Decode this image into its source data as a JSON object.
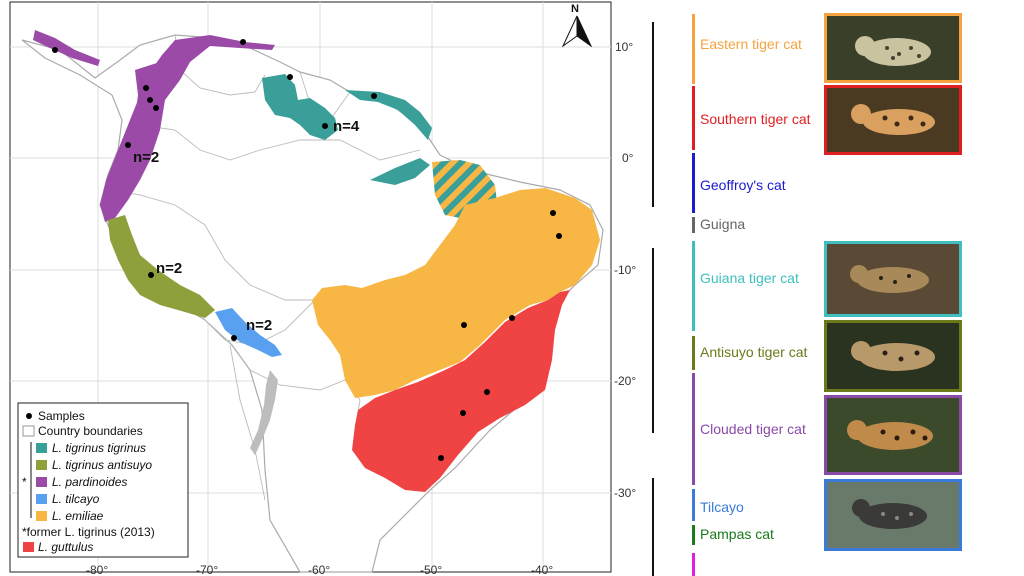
{
  "map": {
    "north_label": "N",
    "lat_ticks": [
      "10°",
      "0°",
      "-10°",
      "-20°",
      "-30°"
    ],
    "lon_ticks": [
      "-80°",
      "-70°",
      "-60°",
      "-50°",
      "-40°"
    ],
    "sample_counts": [
      "n=2",
      "n=2",
      "n=2",
      "n=4"
    ]
  },
  "legend": {
    "samples": "Samples",
    "country_boundaries": "Country boundaries",
    "species": [
      {
        "name": "L. tigrinus tigrinus",
        "color": "#3a9e99"
      },
      {
        "name": "L. tigrinus antisuyo",
        "color": "#8ea03c"
      },
      {
        "name": "L. pardinoides",
        "color": "#9b4aa8"
      },
      {
        "name": "L. tilcayo",
        "color": "#5aa0f0"
      },
      {
        "name": "L. emiliae",
        "color": "#f8b744"
      }
    ],
    "asterisk": "*",
    "footnote": "*former L. tigrinus (2013)",
    "guttulus": {
      "name": "L. guttulus",
      "color": "#f04444"
    }
  },
  "tree": {
    "labels": [
      {
        "name": "Eastern tiger cat",
        "color": "#f4a340"
      },
      {
        "name": "Southern tiger cat",
        "color": "#e02020"
      },
      {
        "name": "Geoffroy's cat",
        "color": "#1a1ad0"
      },
      {
        "name": "Guigna",
        "color": "#666666"
      },
      {
        "name": "Guiana tiger cat",
        "color": "#3fbfbf"
      },
      {
        "name": "Antisuyo tiger cat",
        "color": "#6a7a1a"
      },
      {
        "name": "Clouded tiger cat",
        "color": "#8a4aa8"
      },
      {
        "name": "Tilcayo",
        "color": "#3a7ad8"
      },
      {
        "name": "Pampas cat",
        "color": "#1a7a1a"
      }
    ],
    "photos": [
      {
        "name": "Eastern tiger cat photo",
        "border": "#f4a340"
      },
      {
        "name": "Southern tiger cat photo",
        "border": "#e02020"
      },
      {
        "name": "Guiana tiger cat photo",
        "border": "#3fbfbf"
      },
      {
        "name": "Antisuyo tiger cat photo",
        "border": "#6a7a1a"
      },
      {
        "name": "Clouded tiger cat photo",
        "border": "#8a4aa8"
      },
      {
        "name": "Tilcayo photo",
        "border": "#3a7ad8"
      }
    ]
  }
}
